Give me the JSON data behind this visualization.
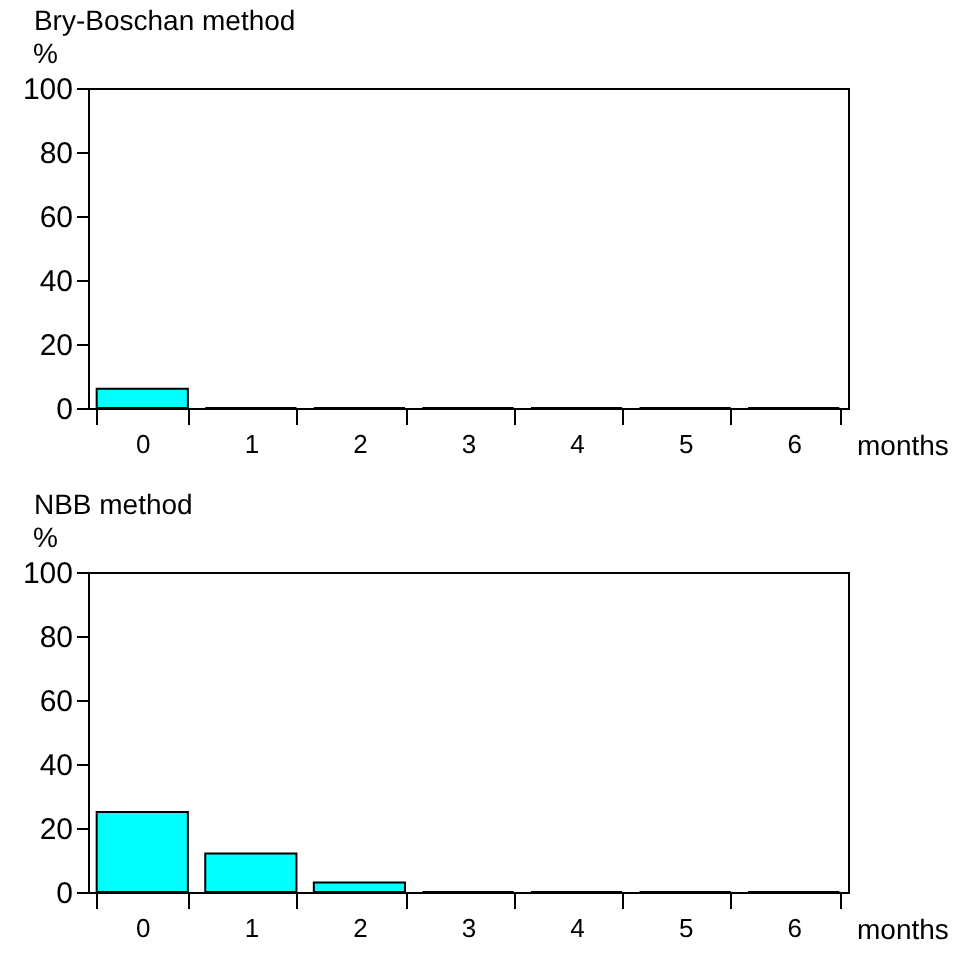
{
  "chart_data": [
    {
      "type": "bar",
      "title": "Bry-Boschan method",
      "xlabel": "months",
      "ylabel": "%",
      "categories": [
        "0",
        "1",
        "2",
        "3",
        "4",
        "5",
        "6"
      ],
      "values": [
        6,
        0,
        0,
        0,
        0,
        0,
        0
      ],
      "color": "#00ffff",
      "ylim": [
        0,
        100
      ],
      "yticks": [
        0,
        20,
        40,
        60,
        80,
        100
      ]
    },
    {
      "type": "bar",
      "title": "NBB method",
      "xlabel": "months",
      "ylabel": "%",
      "categories": [
        "0",
        "1",
        "2",
        "3",
        "4",
        "5",
        "6"
      ],
      "values": [
        25,
        12,
        3,
        0,
        0,
        0,
        0
      ],
      "color": "#00ffff",
      "ylim": [
        0,
        100
      ],
      "yticks": [
        0,
        20,
        40,
        60,
        80,
        100
      ]
    }
  ]
}
